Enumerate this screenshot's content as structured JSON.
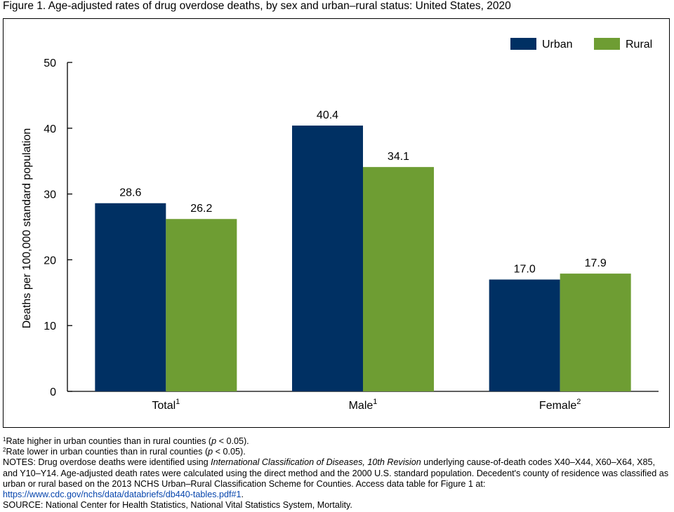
{
  "title": "Figure 1. Age-adjusted rates of drug overdose deaths, by sex and urban–rural status: United States, 2020",
  "colors": {
    "urban": "#003063",
    "rural": "#6E9D33"
  },
  "chart_data": {
    "type": "bar",
    "categories": [
      "Total",
      "Male",
      "Female"
    ],
    "category_superscripts": [
      "1",
      "1",
      "2"
    ],
    "series": [
      {
        "name": "Urban",
        "values": [
          28.6,
          40.4,
          17.0
        ],
        "labels": [
          "28.6",
          "40.4",
          "17.0"
        ]
      },
      {
        "name": "Rural",
        "values": [
          26.2,
          34.1,
          17.9
        ],
        "labels": [
          "26.2",
          "34.1",
          "17.9"
        ]
      }
    ],
    "ylabel": "Deaths per 100,000 standard population",
    "ylim": [
      0,
      50
    ],
    "yticks": [
      0,
      10,
      20,
      30,
      40,
      50
    ],
    "legend": "top-right",
    "grid": false
  },
  "notes": {
    "fn1_sup": "1",
    "fn1_pre": "Rate higher in urban counties than in rural counties (",
    "fn1_p": "p",
    "fn1_post": " < 0.05).",
    "fn2_sup": "2",
    "fn2_pre": "Rate lower in urban counties than in rural counties (",
    "fn2_p": "p",
    "fn2_post": " < 0.05).",
    "notes_pre": "NOTES: Drug overdose deaths were identified using ",
    "notes_italic": "International Classification of Diseases, 10th Revision",
    "notes_post": " underlying cause-of-death codes X40–X44, X60–X64, X85, and Y10–Y14. Age-adjusted death rates were calculated using the direct method and the 2000 U.S. standard population. Decedent's county of residence was classified as urban or rural based on the 2013 NCHS Urban–Rural Classification Scheme for Counties. Access data table for Figure 1 at:",
    "link": "https://www.cdc.gov/nchs/data/databriefs/db440-tables.pdf#1",
    "link_after": ".",
    "source": "SOURCE: National Center for Health Statistics, National Vital Statistics System, Mortality."
  }
}
